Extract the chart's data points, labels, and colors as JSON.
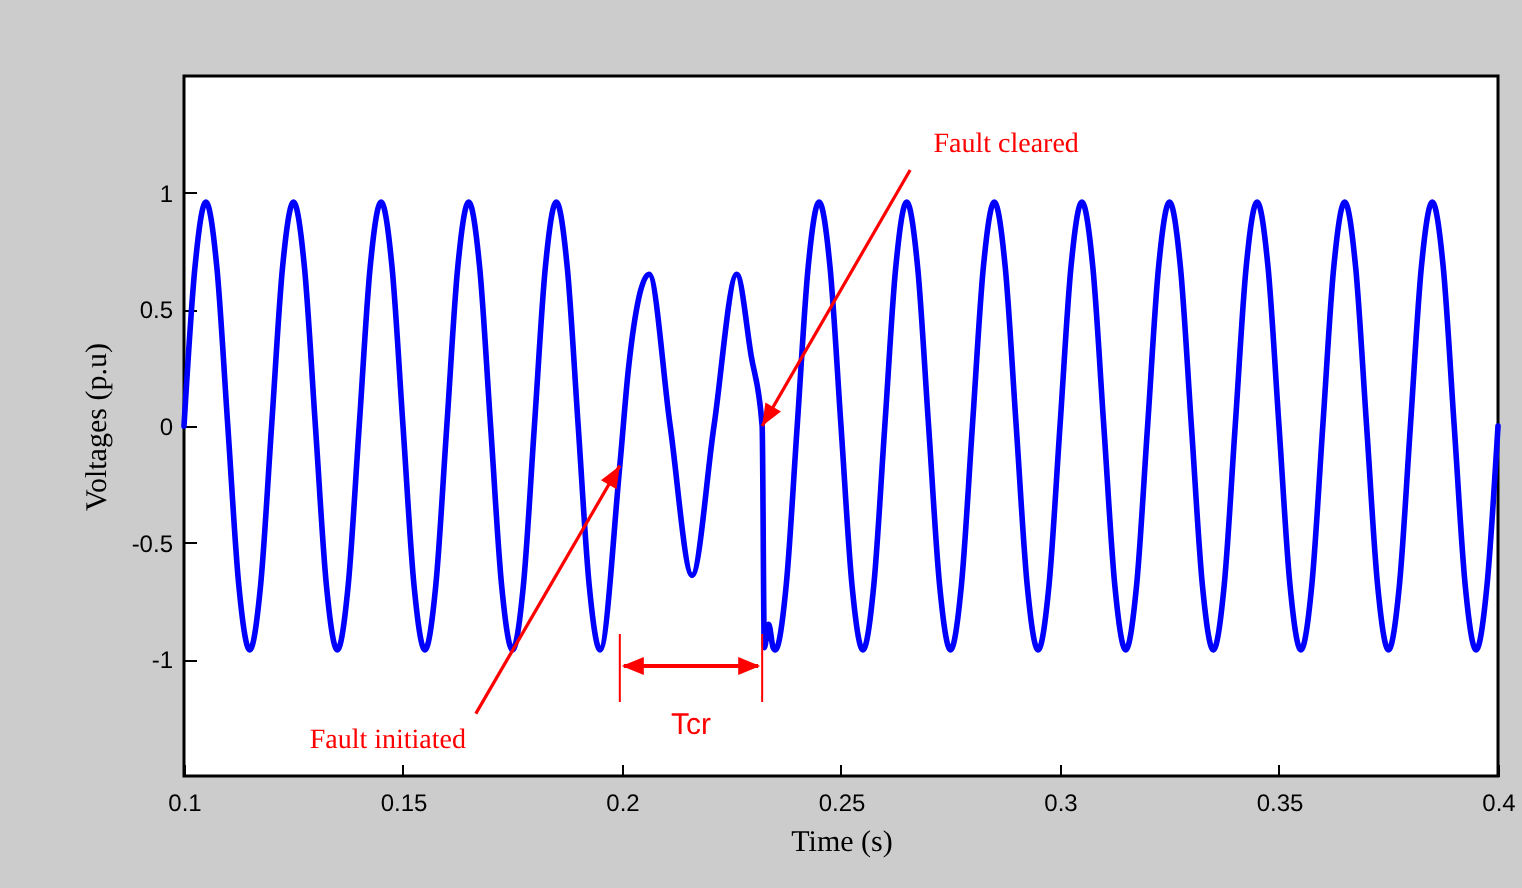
{
  "chart_data": {
    "type": "line",
    "xlabel": "Time (s)",
    "ylabel": "Voltages (p.u)",
    "xlim": [
      0.1,
      0.4
    ],
    "xticks": [
      0.1,
      0.15,
      0.2,
      0.25,
      0.3,
      0.35,
      0.4
    ],
    "ylim": [
      -1.5,
      1.5
    ],
    "yticks": [
      -1,
      -0.5,
      0,
      0.5,
      1
    ],
    "grid": false,
    "marker": "none",
    "line_style": "solid",
    "annotations": [
      {
        "text": "Fault initiated",
        "x": 0.1995,
        "y": -0.17
      },
      {
        "text": "Fault cleared",
        "x": 0.232,
        "y": 0
      },
      "Tcr"
    ],
    "series": [
      {
        "color": "#0000ff",
        "x": [
          0.1,
          0.1025,
          0.105,
          0.1075,
          0.11,
          0.1125,
          0.115,
          0.1175,
          0.12,
          0.1225,
          0.125,
          0.1275,
          0.13,
          0.1325,
          0.135,
          0.1375,
          0.14,
          0.1425,
          0.145,
          0.1475,
          0.15,
          0.1525,
          0.155,
          0.1575,
          0.16,
          0.1625,
          0.165,
          0.1675,
          0.17,
          0.1725,
          0.175,
          0.1775,
          0.18,
          0.1825,
          0.185,
          0.1875,
          0.19,
          0.1925,
          0.195,
          0.1995,
          0.2015,
          0.2062,
          0.211,
          0.216,
          0.221,
          0.2262,
          0.2295,
          0.232,
          0.2325,
          0.2335,
          0.2345,
          0.235,
          0.2375,
          0.24,
          0.2425,
          0.245,
          0.2475,
          0.25,
          0.2525,
          0.255,
          0.2575,
          0.26,
          0.2625,
          0.265,
          0.2675,
          0.27,
          0.2725,
          0.275,
          0.2775,
          0.28,
          0.2825,
          0.285,
          0.2875,
          0.29,
          0.2925,
          0.295,
          0.2975,
          0.3,
          0.3025,
          0.305,
          0.3075,
          0.31,
          0.3125,
          0.315,
          0.3175,
          0.32,
          0.3225,
          0.325,
          0.3275,
          0.33,
          0.3325,
          0.335,
          0.3375,
          0.34,
          0.3425,
          0.345,
          0.3475,
          0.35,
          0.3525,
          0.355,
          0.3575,
          0.36,
          0.3625,
          0.365,
          0.3675,
          0.37,
          0.3725,
          0.375,
          0.3775,
          0.38,
          0.3825,
          0.385,
          0.3875,
          0.39,
          0.3925,
          0.395,
          0.3975,
          0.4
        ],
        "values": [
          0,
          0.68,
          0.96,
          0.68,
          0,
          -0.68,
          -0.96,
          -0.68,
          0,
          0.68,
          0.96,
          0.68,
          0,
          -0.68,
          -0.96,
          -0.68,
          0,
          0.68,
          0.96,
          0.68,
          0,
          -0.68,
          -0.96,
          -0.68,
          0,
          0.68,
          0.96,
          0.68,
          0,
          -0.68,
          -0.96,
          -0.68,
          0,
          0.68,
          0.96,
          0.68,
          0,
          -0.68,
          -0.96,
          -0.17,
          0.25,
          0.65,
          0,
          -0.64,
          0,
          0.65,
          0.3,
          0,
          -0.95,
          -0.85,
          -0.95,
          -0.96,
          -0.68,
          0,
          0.68,
          0.96,
          0.68,
          0,
          -0.68,
          -0.96,
          -0.68,
          0,
          0.68,
          0.96,
          0.68,
          0,
          -0.68,
          -0.96,
          -0.68,
          0,
          0.68,
          0.96,
          0.68,
          0,
          -0.68,
          -0.96,
          -0.68,
          0,
          0.68,
          0.96,
          0.68,
          0,
          -0.68,
          -0.96,
          -0.68,
          0,
          0.68,
          0.96,
          0.68,
          0,
          -0.68,
          -0.96,
          -0.68,
          0,
          0.68,
          0.96,
          0.68,
          0,
          -0.68,
          -0.96,
          -0.68,
          0,
          0.68,
          0.96,
          0.68,
          0,
          -0.68,
          -0.96,
          -0.68,
          0,
          0.68,
          0.96,
          0.68,
          0,
          -0.68,
          -0.96,
          -0.68,
          0
        ]
      }
    ]
  }
}
